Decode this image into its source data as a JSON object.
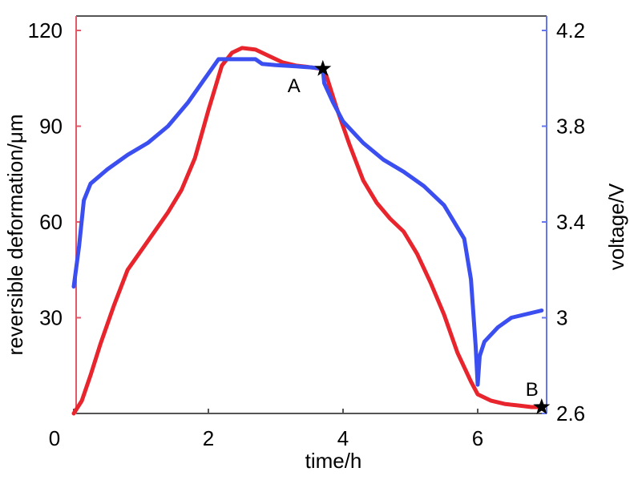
{
  "chart_data": {
    "type": "line",
    "xlabel": "time/h",
    "ylabel_left": "reversible deformation/μm",
    "ylabel_right": "voltage/V",
    "xlim": [
      0,
      7
    ],
    "ylim_left": [
      0,
      120
    ],
    "ylim_right": [
      2.6,
      4.2
    ],
    "x_ticks": [
      "0",
      "2",
      "4",
      "6"
    ],
    "y_left_ticks": [
      "30",
      "60",
      "90",
      "120"
    ],
    "y_right_ticks": [
      "2.6",
      "3",
      "3.4",
      "3.8",
      "4.2"
    ],
    "grid": false,
    "colors": {
      "deformation": "#e8242c",
      "voltage": "#3b4ef0",
      "left_axis": "#e05a6a",
      "right_axis": "#6677ee"
    },
    "series": [
      {
        "axis": "left",
        "color": "#e8242c",
        "x": [
          0.0,
          0.12,
          0.25,
          0.4,
          0.6,
          0.8,
          1.0,
          1.2,
          1.4,
          1.6,
          1.8,
          2.0,
          2.2,
          2.35,
          2.5,
          2.7,
          2.9,
          3.1,
          3.3,
          3.5,
          3.67,
          3.75,
          3.9,
          4.1,
          4.3,
          4.5,
          4.7,
          4.9,
          5.1,
          5.3,
          5.5,
          5.7,
          5.9,
          6.0,
          6.2,
          6.4,
          6.6,
          6.8,
          6.95
        ],
        "values": [
          0,
          4,
          12,
          22,
          34,
          45,
          51,
          57,
          63,
          70,
          80,
          95,
          109,
          113,
          114.5,
          114,
          112,
          110,
          109,
          108.5,
          108,
          106,
          96,
          84,
          73,
          66,
          61,
          57,
          50,
          41,
          31,
          19,
          10,
          6,
          4,
          3,
          2.5,
          2,
          2
        ]
      },
      {
        "axis": "right",
        "color": "#3b4ef0",
        "x": [
          0.0,
          0.08,
          0.15,
          0.25,
          0.5,
          0.8,
          1.1,
          1.4,
          1.7,
          2.0,
          2.15,
          2.35,
          2.7,
          2.8,
          3.0,
          3.3,
          3.55,
          3.7,
          3.72,
          3.85,
          4.0,
          4.3,
          4.6,
          4.9,
          5.2,
          5.5,
          5.8,
          5.9,
          5.97,
          6.0,
          6.03,
          6.1,
          6.3,
          6.5,
          6.8,
          6.95
        ],
        "values": [
          3.13,
          3.3,
          3.49,
          3.56,
          3.62,
          3.68,
          3.73,
          3.8,
          3.9,
          4.02,
          4.08,
          4.08,
          4.08,
          4.06,
          4.055,
          4.05,
          4.045,
          4.04,
          3.98,
          3.9,
          3.82,
          3.73,
          3.66,
          3.61,
          3.55,
          3.47,
          3.33,
          3.16,
          2.88,
          2.72,
          2.84,
          2.9,
          2.96,
          3.0,
          3.02,
          3.03
        ]
      }
    ],
    "annotations": [
      {
        "label": "A",
        "x": 3.7,
        "y_left": 108,
        "marker": "star"
      },
      {
        "label": "B",
        "x": 6.95,
        "y_left": 2,
        "marker": "star"
      }
    ]
  }
}
